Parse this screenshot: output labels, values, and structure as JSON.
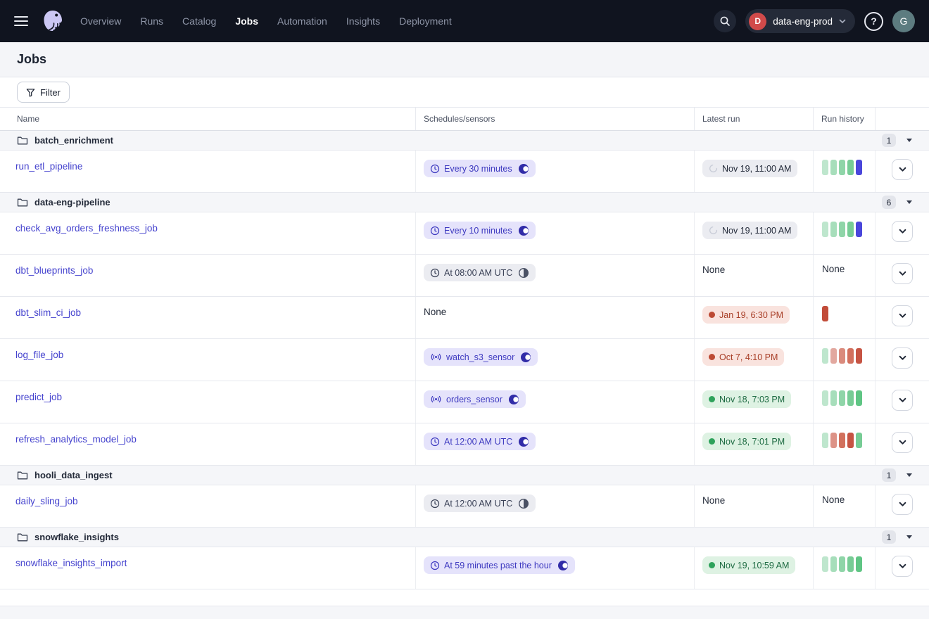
{
  "nav": {
    "menu_items": [
      "Overview",
      "Runs",
      "Catalog",
      "Jobs",
      "Automation",
      "Insights",
      "Deployment"
    ],
    "active_item": "Jobs",
    "deployment": {
      "initial": "D",
      "name": "data-eng-prod"
    },
    "help_glyph": "?",
    "avatar_initial": "G"
  },
  "page": {
    "title": "Jobs"
  },
  "toolbar": {
    "filter_label": "Filter"
  },
  "table": {
    "columns": [
      "Name",
      "Schedules/sensors",
      "Latest run",
      "Run history"
    ],
    "none_label": "None",
    "groups": [
      {
        "name": "batch_enrichment",
        "count": "1",
        "jobs": [
          {
            "name": "run_etl_pipeline",
            "automation": {
              "kind": "schedule",
              "label": "Every 30 minutes",
              "enabled": true
            },
            "latest_run": {
              "status": "in_progress",
              "label": "Nov 19, 11:00 AM"
            },
            "run_history": [
              "#BEE6CD",
              "#A7DEBB",
              "#8FD5A8",
              "#77CC95",
              "#4A46DB"
            ]
          }
        ]
      },
      {
        "name": "data-eng-pipeline",
        "count": "6",
        "jobs": [
          {
            "name": "check_avg_orders_freshness_job",
            "automation": {
              "kind": "schedule",
              "label": "Every 10 minutes",
              "enabled": true
            },
            "latest_run": {
              "status": "in_progress",
              "label": "Nov 19, 11:00 AM"
            },
            "run_history": [
              "#BEE6CD",
              "#A7DEBB",
              "#8FD5A8",
              "#77CC95",
              "#4A46DB"
            ]
          },
          {
            "name": "dbt_blueprints_job",
            "automation": {
              "kind": "schedule",
              "label": "At 08:00 AM UTC",
              "enabled": false
            },
            "latest_run": null,
            "run_history": []
          },
          {
            "name": "dbt_slim_ci_job",
            "automation": null,
            "latest_run": {
              "status": "failure",
              "label": "Jan 19, 6:30 PM"
            },
            "run_history": [
              "#C24C39"
            ]
          },
          {
            "name": "log_file_job",
            "automation": {
              "kind": "sensor",
              "label": "watch_s3_sensor",
              "enabled": true
            },
            "latest_run": {
              "status": "failure",
              "label": "Oct 7, 4:10 PM"
            },
            "run_history": [
              "#BEE6CD",
              "#E2A89F",
              "#DA8B7D",
              "#D2705E",
              "#C65443"
            ]
          },
          {
            "name": "predict_job",
            "automation": {
              "kind": "sensor",
              "label": "orders_sensor",
              "enabled": true
            },
            "latest_run": {
              "status": "success",
              "label": "Nov 18, 7:03 PM"
            },
            "run_history": [
              "#BEE6CD",
              "#A7DEBB",
              "#8FD5A8",
              "#77CC95",
              "#5FC584"
            ]
          },
          {
            "name": "refresh_analytics_model_job",
            "automation": {
              "kind": "schedule",
              "label": "At 12:00 AM UTC",
              "enabled": true
            },
            "latest_run": {
              "status": "success",
              "label": "Nov 18, 7:01 PM"
            },
            "run_history": [
              "#BEE6CD",
              "#DD9387",
              "#D2715D",
              "#C65443",
              "#77CC95"
            ]
          }
        ]
      },
      {
        "name": "hooli_data_ingest",
        "count": "1",
        "jobs": [
          {
            "name": "daily_sling_job",
            "automation": {
              "kind": "schedule",
              "label": "At 12:00 AM UTC",
              "enabled": false
            },
            "latest_run": null,
            "run_history": []
          }
        ]
      },
      {
        "name": "snowflake_insights",
        "count": "1",
        "jobs": [
          {
            "name": "snowflake_insights_import",
            "automation": {
              "kind": "schedule",
              "label": "At 59 minutes past the hour",
              "enabled": true
            },
            "latest_run": {
              "status": "success",
              "label": "Nov 19, 10:59 AM"
            },
            "run_history": [
              "#BEE6CD",
              "#A7DEBB",
              "#8FD5A8",
              "#77CC95",
              "#5FC584"
            ]
          }
        ]
      }
    ]
  },
  "colors": {
    "accent_indigo": "#4543CE",
    "in_progress_blue": "#4A46DB",
    "success_green": "#2EA25B",
    "failure_red": "#BC4A34",
    "nav_background": "#10141F"
  }
}
